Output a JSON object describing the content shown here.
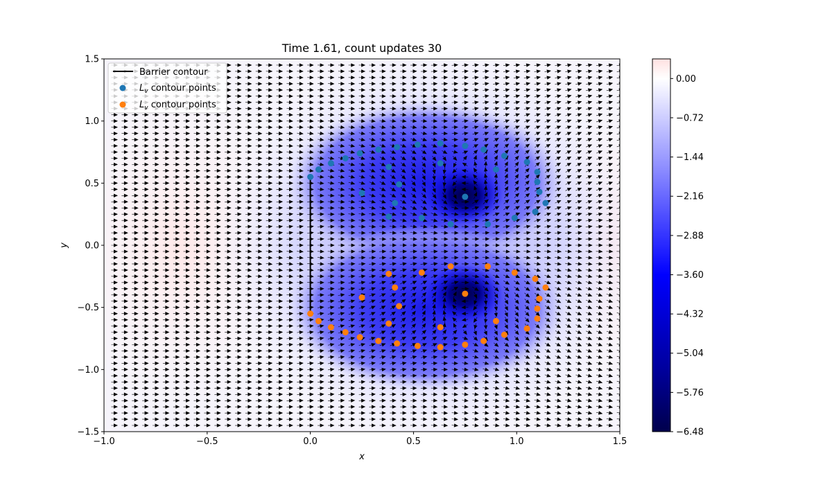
{
  "chart_data": {
    "type": "quiver",
    "title": "Time 1.61, count updates 30",
    "xlabel": "x",
    "ylabel": "y",
    "xlim": [
      -1.0,
      1.5
    ],
    "ylim": [
      -1.5,
      1.5
    ],
    "xticks": [
      "−1.0",
      "−0.5",
      "0.0",
      "0.5",
      "1.0",
      "1.5"
    ],
    "yticks": [
      "−1.5",
      "−1.0",
      "−0.5",
      "0.0",
      "0.5",
      "1.0",
      "1.5"
    ],
    "legend": {
      "placement": "upper-left",
      "entries": [
        {
          "label": "Barrier contour",
          "color": "#000000",
          "marker": "line"
        },
        {
          "label_main": "L",
          "label_sub": "v",
          "label_rest": " contour points",
          "color": "#1f77b4",
          "marker": "dot"
        },
        {
          "label_main": "L",
          "label_sub": "v",
          "label_rest": " contour points",
          "color": "#ff7f0e",
          "marker": "dot"
        }
      ]
    },
    "colorbar": {
      "range": [
        -6.48,
        0.36
      ],
      "ticks": [
        {
          "value": 0.0,
          "label": "0.00"
        },
        {
          "value": -0.72,
          "label": "−0.72"
        },
        {
          "value": -1.44,
          "label": "−1.44"
        },
        {
          "value": -2.16,
          "label": "−2.16"
        },
        {
          "value": -2.88,
          "label": "−2.88"
        },
        {
          "value": -3.6,
          "label": "−3.60"
        },
        {
          "value": -4.32,
          "label": "−4.32"
        },
        {
          "value": -5.04,
          "label": "−5.04"
        },
        {
          "value": -5.76,
          "label": "−5.76"
        },
        {
          "value": -6.48,
          "label": "−6.48"
        }
      ],
      "colormap": "seismic (dark navy → blue → white → red)"
    },
    "vortices": [
      {
        "x": 0.75,
        "y": 0.4,
        "sense": "counter-clockwise"
      },
      {
        "x": 0.75,
        "y": -0.4,
        "sense": "clockwise"
      }
    ],
    "barrier_contour": [
      [
        0.0,
        0.55
      ],
      [
        0.0,
        -0.55
      ]
    ],
    "series": [
      {
        "color": "#1f77b4",
        "points": [
          [
            0.0,
            0.55
          ],
          [
            0.04,
            0.61
          ],
          [
            0.1,
            0.66
          ],
          [
            0.17,
            0.7
          ],
          [
            0.24,
            0.74
          ],
          [
            0.33,
            0.77
          ],
          [
            0.42,
            0.79
          ],
          [
            0.52,
            0.81
          ],
          [
            0.63,
            0.82
          ],
          [
            0.75,
            0.8
          ],
          [
            0.84,
            0.77
          ],
          [
            0.94,
            0.72
          ],
          [
            1.05,
            0.67
          ],
          [
            1.1,
            0.59
          ],
          [
            1.1,
            0.51
          ],
          [
            1.11,
            0.43
          ],
          [
            1.14,
            0.34
          ],
          [
            1.09,
            0.27
          ],
          [
            0.99,
            0.22
          ],
          [
            0.86,
            0.17
          ],
          [
            0.68,
            0.17
          ],
          [
            0.54,
            0.22
          ],
          [
            0.38,
            0.23
          ],
          [
            0.41,
            0.34
          ],
          [
            0.43,
            0.49
          ],
          [
            0.25,
            0.42
          ],
          [
            0.38,
            0.63
          ],
          [
            0.63,
            0.66
          ],
          [
            0.9,
            0.61
          ],
          [
            0.75,
            0.39
          ]
        ]
      },
      {
        "color": "#ff7f0e",
        "points": [
          [
            0.0,
            -0.55
          ],
          [
            0.04,
            -0.61
          ],
          [
            0.1,
            -0.66
          ],
          [
            0.17,
            -0.7
          ],
          [
            0.24,
            -0.74
          ],
          [
            0.33,
            -0.77
          ],
          [
            0.42,
            -0.79
          ],
          [
            0.52,
            -0.81
          ],
          [
            0.63,
            -0.82
          ],
          [
            0.75,
            -0.8
          ],
          [
            0.84,
            -0.77
          ],
          [
            0.94,
            -0.72
          ],
          [
            1.05,
            -0.67
          ],
          [
            1.1,
            -0.59
          ],
          [
            1.1,
            -0.51
          ],
          [
            1.11,
            -0.43
          ],
          [
            1.14,
            -0.34
          ],
          [
            1.09,
            -0.27
          ],
          [
            0.99,
            -0.22
          ],
          [
            0.86,
            -0.17
          ],
          [
            0.68,
            -0.17
          ],
          [
            0.54,
            -0.22
          ],
          [
            0.38,
            -0.23
          ],
          [
            0.41,
            -0.34
          ],
          [
            0.43,
            -0.49
          ],
          [
            0.25,
            -0.42
          ],
          [
            0.38,
            -0.63
          ],
          [
            0.63,
            -0.66
          ],
          [
            0.9,
            -0.61
          ],
          [
            0.75,
            -0.39
          ]
        ]
      }
    ],
    "grid": false
  }
}
